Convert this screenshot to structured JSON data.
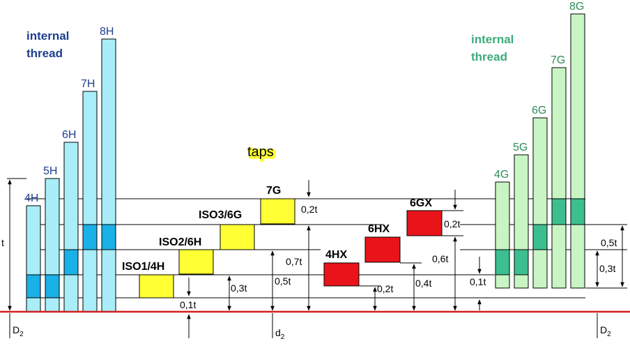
{
  "left_header": {
    "line1": "internal",
    "line2": "thread"
  },
  "right_header": {
    "line1": "internal",
    "line2": "thread"
  },
  "taps_label": "taps",
  "left_classes": [
    "4H",
    "5H",
    "6H",
    "7H",
    "8H"
  ],
  "right_classes": [
    "4G",
    "5G",
    "6G",
    "7G",
    "8G"
  ],
  "tap_classes_yellow": [
    "ISO1/4H",
    "ISO2/6H",
    "ISO3/6G",
    "7G"
  ],
  "tap_classes_red": [
    "4HX",
    "6HX",
    "6GX"
  ],
  "dims": {
    "t": "t",
    "d01": "0,1t",
    "d03": "0,3t",
    "d05": "0,5t",
    "d07": "0,7t",
    "d02_top": "0,2t",
    "d02_red": "0,2t",
    "d02_hx": "0,2t",
    "d04": "0,4t",
    "d06": "0,6t",
    "r01": "0,1t",
    "r03": "0,3t",
    "r05": "0,5t"
  },
  "diam_left": {
    "main": "D",
    "sub": "2"
  },
  "diam_mid": {
    "main": "d",
    "sub": "2"
  },
  "diam_right": {
    "main": "D",
    "sub": "2"
  },
  "colors": {
    "cyan_fill": "#a8edf7",
    "cyan_dark": "#1ab0e8",
    "green_fill": "#c9f5c4",
    "green_dark": "#3cbf8e",
    "yellow": "#ffff33",
    "red": "#e8141a",
    "baseline": "#d42020",
    "blue_text": "#1d3f8f",
    "green_text": "#2e8b57"
  }
}
